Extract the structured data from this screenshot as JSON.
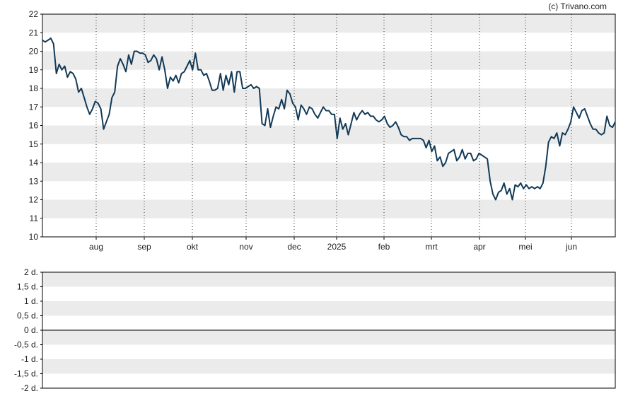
{
  "credit": "(c) Trivano.com",
  "colors": {
    "line": "#123a57",
    "band": "#ebebeb",
    "grid": "#333333",
    "axis": "#000000"
  },
  "chart_data": [
    {
      "type": "line",
      "title": "",
      "xlabel": "",
      "ylabel": "",
      "ylim": [
        10,
        22
      ],
      "y_ticks": [
        "10",
        "11",
        "12",
        "13",
        "14",
        "15",
        "16",
        "17",
        "18",
        "19",
        "20",
        "21",
        "22"
      ],
      "x_ticks": [
        "aug",
        "sep",
        "okt",
        "nov",
        "dec",
        "2025",
        "feb",
        "mrt",
        "apr",
        "mei",
        "jun"
      ],
      "grid": "vertical dotted lines at month ticks, alternating horizontal bands",
      "series": [
        {
          "values": [
            20.6,
            20.5,
            20.6,
            20.7,
            20.4,
            18.8,
            19.3,
            19.0,
            19.2,
            18.6,
            18.9,
            18.8,
            18.5,
            17.8,
            18.0,
            17.5,
            17.0,
            16.6,
            16.9,
            17.3,
            17.2,
            16.9,
            15.8,
            16.2,
            16.6,
            17.5,
            17.8,
            19.2,
            19.6,
            19.3,
            18.9,
            19.8,
            19.3,
            20.0,
            20.0,
            19.9,
            19.9,
            19.8,
            19.4,
            19.5,
            19.8,
            19.6,
            19.0,
            19.7,
            19.0,
            18.0,
            18.6,
            18.4,
            18.7,
            18.3,
            18.8,
            18.9,
            19.2,
            19.5,
            19.0,
            19.9,
            19.0,
            19.0,
            18.7,
            18.8,
            18.4,
            17.9,
            17.9,
            18.0,
            18.8,
            17.9,
            18.7,
            18.2,
            18.9,
            17.8,
            18.9,
            18.9,
            18.0,
            18.0,
            18.1,
            18.2,
            18.0,
            18.1,
            18.0,
            16.1,
            16.0,
            16.9,
            15.9,
            16.5,
            17.0,
            16.9,
            17.4,
            16.9,
            17.9,
            17.7,
            17.2,
            17.0,
            16.3,
            17.1,
            16.9,
            16.6,
            17.0,
            16.9,
            16.6,
            16.4,
            16.7,
            17.0,
            16.8,
            16.8,
            16.6,
            16.6,
            15.3,
            16.4,
            15.8,
            16.1,
            15.5,
            16.1,
            16.7,
            16.3,
            16.6,
            16.8,
            16.6,
            16.7,
            16.5,
            16.5,
            16.3,
            16.2,
            16.3,
            16.5,
            16.1,
            15.9,
            16.0,
            16.2,
            15.9,
            15.5,
            15.4,
            15.4,
            15.2,
            15.3,
            15.3,
            15.3,
            15.3,
            15.2,
            14.8,
            15.2,
            14.6,
            14.9,
            14.1,
            14.3,
            13.8,
            14.0,
            14.5,
            14.6,
            14.7,
            14.1,
            14.3,
            14.7,
            14.2,
            14.5,
            14.5,
            14.1,
            14.2,
            14.5,
            14.4,
            14.3,
            14.2,
            13.0,
            12.3,
            12.0,
            12.4,
            12.5,
            12.9,
            12.3,
            12.6,
            12.0,
            12.8,
            12.7,
            12.9,
            12.6,
            12.8,
            12.6,
            12.7,
            12.6,
            12.7,
            12.6,
            12.9,
            13.8,
            15.1,
            15.4,
            15.3,
            15.6,
            14.9,
            15.6,
            15.5,
            15.8,
            16.2,
            17.0,
            16.7,
            16.4,
            16.8,
            16.9,
            16.5,
            16.1,
            15.8,
            15.8,
            15.6,
            15.5,
            15.6,
            16.5,
            16.0,
            15.9,
            16.2
          ]
        }
      ]
    },
    {
      "type": "line",
      "title": "",
      "xlabel": "",
      "ylabel": "",
      "ylim": [
        -2,
        2
      ],
      "y_ticks": [
        "-2 d.",
        "-1,5 d.",
        "-1 d.",
        "-0,5 d.",
        "0 d.",
        "0,5 d.",
        "1 d.",
        "1,5 d.",
        "2 d."
      ],
      "series": []
    }
  ]
}
